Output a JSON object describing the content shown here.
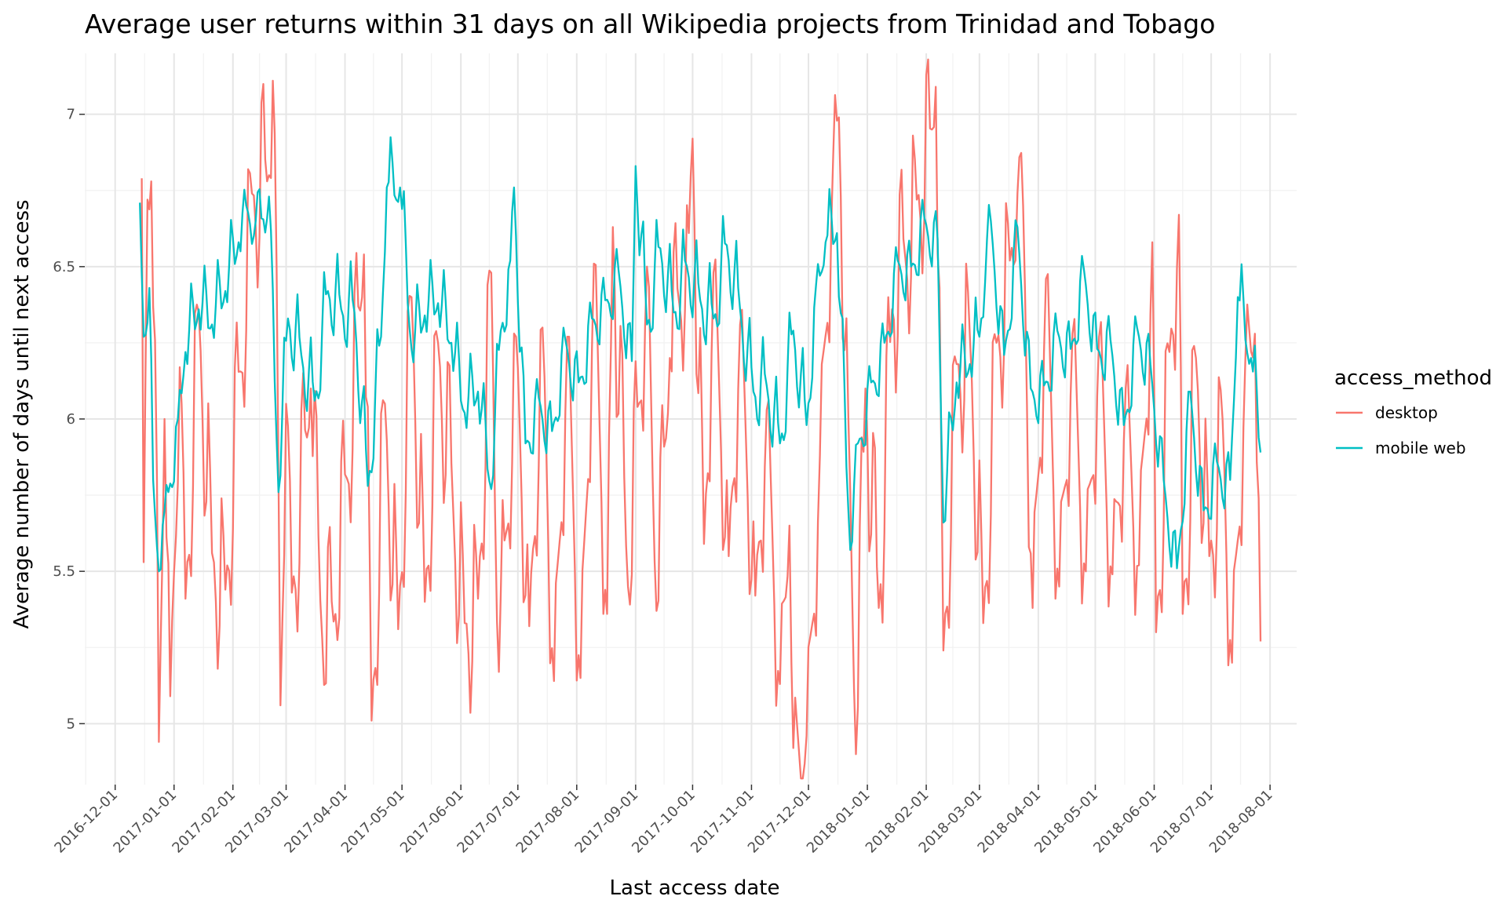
{
  "chart_data": {
    "type": "line",
    "title": "Average user returns within 31 days on all Wikipedia projects from Trinidad and Tobago",
    "xlabel": "Last access date",
    "ylabel": "Average number of days until next access",
    "x_range": [
      "2016-11-15",
      "2018-08-15"
    ],
    "ylim": [
      4.8,
      7.2
    ],
    "x_ticks": [
      "2016-12-01",
      "2017-01-01",
      "2017-02-01",
      "2017-03-01",
      "2017-04-01",
      "2017-05-01",
      "2017-06-01",
      "2017-07-01",
      "2017-08-01",
      "2017-09-01",
      "2017-10-01",
      "2017-11-01",
      "2017-12-01",
      "2018-01-01",
      "2018-02-01",
      "2018-03-01",
      "2018-04-01",
      "2018-05-01",
      "2018-06-01",
      "2018-07-01",
      "2018-08-01"
    ],
    "y_ticks": [
      5,
      5.5,
      6,
      6.5,
      7
    ],
    "y_tick_labels": [
      "5",
      "5.5",
      "6",
      "6.5",
      "7"
    ],
    "grid": true,
    "legend": {
      "title": "access_method",
      "position": "right"
    },
    "series": [
      {
        "name": "desktop",
        "color": "#F8766D",
        "x_start": "2016-12-15",
        "x_end": "2018-07-27",
        "key_points": [
          [
            "2016-12-15",
            6.79
          ],
          [
            "2016-12-16",
            5.53
          ],
          [
            "2016-12-18",
            6.72
          ],
          [
            "2016-12-20",
            6.78
          ],
          [
            "2016-12-23",
            5.8
          ],
          [
            "2016-12-24",
            4.94
          ],
          [
            "2016-12-27",
            6.0
          ],
          [
            "2016-12-30",
            5.09
          ],
          [
            "2017-01-04",
            6.17
          ],
          [
            "2017-01-07",
            5.41
          ],
          [
            "2017-01-14",
            6.35
          ],
          [
            "2017-01-21",
            5.56
          ],
          [
            "2017-01-28",
            5.44
          ],
          [
            "2017-02-11",
            6.74
          ],
          [
            "2017-02-20",
            6.8
          ],
          [
            "2017-02-22",
            7.11
          ],
          [
            "2017-02-24",
            6.5
          ],
          [
            "2017-02-26",
            5.06
          ],
          [
            "2017-03-01",
            6.05
          ],
          [
            "2017-03-04",
            5.43
          ],
          [
            "2017-03-14",
            6.1
          ],
          [
            "2017-03-20",
            5.28
          ],
          [
            "2017-03-27",
            5.36
          ],
          [
            "2017-04-11",
            6.54
          ],
          [
            "2017-04-15",
            5.01
          ],
          [
            "2017-04-22",
            6.05
          ],
          [
            "2017-04-29",
            5.31
          ],
          [
            "2017-05-06",
            6.4
          ],
          [
            "2017-05-13",
            5.4
          ],
          [
            "2017-05-20",
            6.25
          ],
          [
            "2017-06-03",
            5.33
          ],
          [
            "2017-06-10",
            5.41
          ],
          [
            "2017-06-17",
            6.48
          ],
          [
            "2017-06-21",
            5.17
          ],
          [
            "2017-06-30",
            6.27
          ],
          [
            "2017-07-07",
            5.32
          ],
          [
            "2017-07-14",
            6.3
          ],
          [
            "2017-07-20",
            5.14
          ],
          [
            "2017-07-27",
            6.27
          ],
          [
            "2017-08-03",
            5.15
          ],
          [
            "2017-08-10",
            6.51
          ],
          [
            "2017-08-17",
            5.36
          ],
          [
            "2017-08-20",
            6.63
          ],
          [
            "2017-08-28",
            5.45
          ],
          [
            "2017-09-07",
            6.5
          ],
          [
            "2017-09-12",
            5.37
          ],
          [
            "2017-09-19",
            6.2
          ],
          [
            "2017-09-29",
            6.61
          ],
          [
            "2017-10-01",
            6.92
          ],
          [
            "2017-10-07",
            5.59
          ],
          [
            "2017-10-12",
            6.48
          ],
          [
            "2017-10-20",
            5.55
          ],
          [
            "2017-10-26",
            6.31
          ],
          [
            "2017-11-03",
            5.42
          ],
          [
            "2017-11-09",
            6.03
          ],
          [
            "2017-11-16",
            5.13
          ],
          [
            "2017-11-21",
            5.65
          ],
          [
            "2017-11-23",
            4.92
          ],
          [
            "2017-11-30",
            4.96
          ],
          [
            "2017-12-07",
            5.88
          ],
          [
            "2017-12-14",
            6.86
          ],
          [
            "2017-12-17",
            6.99
          ],
          [
            "2017-12-22",
            6.0
          ],
          [
            "2017-12-26",
            4.9
          ],
          [
            "2017-12-31",
            6.1
          ],
          [
            "2018-01-07",
            5.38
          ],
          [
            "2018-01-14",
            6.36
          ],
          [
            "2018-01-27",
            6.72
          ],
          [
            "2018-02-04",
            6.95
          ],
          [
            "2018-02-06",
            7.09
          ],
          [
            "2018-02-10",
            5.24
          ],
          [
            "2018-02-17",
            6.18
          ],
          [
            "2018-02-24",
            6.27
          ],
          [
            "2018-03-03",
            5.33
          ],
          [
            "2018-03-10",
            6.25
          ],
          [
            "2018-03-17",
            6.52
          ],
          [
            "2018-03-21",
            6.74
          ],
          [
            "2018-03-24",
            6.7
          ],
          [
            "2018-03-29",
            5.38
          ],
          [
            "2018-04-05",
            6.46
          ],
          [
            "2018-04-12",
            5.45
          ],
          [
            "2018-04-19",
            6.28
          ],
          [
            "2018-04-26",
            5.5
          ],
          [
            "2018-05-03",
            6.27
          ],
          [
            "2018-05-10",
            5.49
          ],
          [
            "2018-05-17",
            6.1
          ],
          [
            "2018-05-24",
            5.52
          ],
          [
            "2018-05-31",
            6.58
          ],
          [
            "2018-06-02",
            5.3
          ],
          [
            "2018-06-09",
            6.22
          ],
          [
            "2018-06-14",
            6.67
          ],
          [
            "2018-06-16",
            5.36
          ],
          [
            "2018-06-23",
            6.2
          ],
          [
            "2018-06-30",
            5.55
          ],
          [
            "2018-07-07",
            6.0
          ],
          [
            "2018-07-12",
            5.2
          ],
          [
            "2018-07-19",
            6.2
          ],
          [
            "2018-07-24",
            6.28
          ],
          [
            "2018-07-27",
            5.27
          ]
        ]
      },
      {
        "name": "mobile web",
        "color": "#00BFC4",
        "x_start": "2016-12-14",
        "x_end": "2018-07-27",
        "key_points": [
          [
            "2016-12-14",
            6.71
          ],
          [
            "2016-12-16",
            6.27
          ],
          [
            "2016-12-19",
            6.43
          ],
          [
            "2016-12-21",
            5.8
          ],
          [
            "2016-12-24",
            5.5
          ],
          [
            "2016-12-27",
            5.7
          ],
          [
            "2017-01-03",
            6.0
          ],
          [
            "2017-01-07",
            6.22
          ],
          [
            "2017-01-14",
            6.36
          ],
          [
            "2017-01-21",
            6.31
          ],
          [
            "2017-01-28",
            6.42
          ],
          [
            "2017-02-04",
            6.58
          ],
          [
            "2017-02-08",
            6.7
          ],
          [
            "2017-02-13",
            6.65
          ],
          [
            "2017-02-20",
            6.73
          ],
          [
            "2017-02-25",
            5.76
          ],
          [
            "2017-03-02",
            6.33
          ],
          [
            "2017-03-09",
            6.21
          ],
          [
            "2017-03-16",
            6.06
          ],
          [
            "2017-03-23",
            6.42
          ],
          [
            "2017-03-30",
            6.36
          ],
          [
            "2017-04-06",
            6.35
          ],
          [
            "2017-04-13",
            5.78
          ],
          [
            "2017-04-20",
            6.27
          ],
          [
            "2017-04-23",
            6.76
          ],
          [
            "2017-04-30",
            6.76
          ],
          [
            "2017-05-06",
            6.23
          ],
          [
            "2017-05-13",
            6.34
          ],
          [
            "2017-05-20",
            6.38
          ],
          [
            "2017-05-27",
            6.25
          ],
          [
            "2017-06-03",
            6.02
          ],
          [
            "2017-06-10",
            6.09
          ],
          [
            "2017-06-17",
            5.77
          ],
          [
            "2017-06-22",
            6.29
          ],
          [
            "2017-06-27",
            6.52
          ],
          [
            "2017-06-29",
            6.76
          ],
          [
            "2017-07-05",
            5.92
          ],
          [
            "2017-07-12",
            6.07
          ],
          [
            "2017-07-19",
            5.96
          ],
          [
            "2017-07-26",
            6.26
          ],
          [
            "2017-08-02",
            6.12
          ],
          [
            "2017-08-09",
            6.33
          ],
          [
            "2017-08-16",
            6.39
          ],
          [
            "2017-08-23",
            6.49
          ],
          [
            "2017-08-30",
            6.19
          ],
          [
            "2017-09-01",
            6.83
          ],
          [
            "2017-09-07",
            6.31
          ],
          [
            "2017-09-14",
            6.56
          ],
          [
            "2017-09-21",
            6.35
          ],
          [
            "2017-09-28",
            6.5
          ],
          [
            "2017-10-05",
            6.39
          ],
          [
            "2017-10-12",
            6.33
          ],
          [
            "2017-10-19",
            6.57
          ],
          [
            "2017-10-26",
            6.36
          ],
          [
            "2017-11-02",
            6.09
          ],
          [
            "2017-11-09",
            6.11
          ],
          [
            "2017-11-16",
            5.92
          ],
          [
            "2017-11-23",
            6.29
          ],
          [
            "2017-11-30",
            5.98
          ],
          [
            "2017-12-05",
            6.44
          ],
          [
            "2017-12-10",
            6.58
          ],
          [
            "2017-12-16",
            6.61
          ],
          [
            "2017-12-23",
            5.57
          ],
          [
            "2017-12-27",
            5.92
          ],
          [
            "2018-01-03",
            6.12
          ],
          [
            "2018-01-10",
            6.25
          ],
          [
            "2018-01-17",
            6.52
          ],
          [
            "2018-01-24",
            6.5
          ],
          [
            "2018-01-31",
            6.66
          ],
          [
            "2018-02-07",
            6.59
          ],
          [
            "2018-02-10",
            5.66
          ],
          [
            "2018-02-17",
            6.12
          ],
          [
            "2018-02-24",
            6.18
          ],
          [
            "2018-03-01",
            6.27
          ],
          [
            "2018-03-05",
            6.59
          ],
          [
            "2018-03-07",
            6.65
          ],
          [
            "2018-03-14",
            6.21
          ],
          [
            "2018-03-21",
            6.63
          ],
          [
            "2018-03-28",
            6.1
          ],
          [
            "2018-04-04",
            6.11
          ],
          [
            "2018-04-11",
            6.29
          ],
          [
            "2018-04-18",
            6.23
          ],
          [
            "2018-04-25",
            6.49
          ],
          [
            "2018-05-02",
            6.23
          ],
          [
            "2018-05-09",
            6.26
          ],
          [
            "2018-05-16",
            5.98
          ],
          [
            "2018-05-23",
            6.3
          ],
          [
            "2018-05-30",
            6.18
          ],
          [
            "2018-06-06",
            5.8
          ],
          [
            "2018-06-13",
            5.51
          ],
          [
            "2018-06-20",
            6.09
          ],
          [
            "2018-06-27",
            5.7
          ],
          [
            "2018-07-04",
            5.86
          ],
          [
            "2018-07-11",
            5.8
          ],
          [
            "2018-07-15",
            6.4
          ],
          [
            "2018-07-22",
            6.2
          ],
          [
            "2018-07-27",
            5.89
          ]
        ]
      }
    ]
  }
}
